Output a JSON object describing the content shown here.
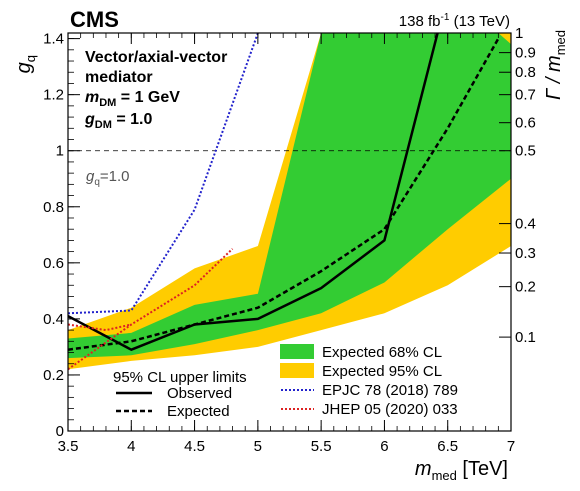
{
  "chart_data": {
    "type": "line",
    "experiment": "CMS",
    "lumi_label": "138 fb",
    "lumi_sup": "-1",
    "lumi_energy": " (13 TeV)",
    "model_lines": {
      "line1": "Vector/axial-vector",
      "line2": "mediator",
      "mdm_prefix": "m",
      "mdm_sub": "DM",
      "mdm_value": " = 1 GeV",
      "gdm_prefix": "g",
      "gdm_sub": "DM",
      "gdm_value": " = 1.0"
    },
    "xlabel": {
      "main": "m",
      "sub": "med",
      "unit": " [TeV]"
    },
    "ylabel": {
      "main": "g",
      "sub": "q"
    },
    "y2label": {
      "main": "Γ / m",
      "sub": "med"
    },
    "xlim": [
      3.5,
      7
    ],
    "ylim": [
      0,
      1.42
    ],
    "x_ticks": [
      "3.5",
      "4",
      "4.5",
      "5",
      "5.5",
      "6",
      "6.5",
      "7"
    ],
    "y_ticks": [
      "0",
      "0.2",
      "0.4",
      "0.6",
      "0.8",
      "1",
      "1.2",
      "1.4"
    ],
    "y2_ticks": [
      {
        "label": "0.1",
        "gq": 0.335
      },
      {
        "label": "0.2",
        "gq": 0.515
      },
      {
        "label": "0.3",
        "gq": 0.635
      },
      {
        "label": "0.4",
        "gq": 0.74
      },
      {
        "label": "0.5",
        "gq": 1.0
      },
      {
        "label": "0.6",
        "gq": 1.1
      },
      {
        "label": "0.7",
        "gq": 1.2
      },
      {
        "label": "0.8",
        "gq": 1.28
      },
      {
        "label": "0.9",
        "gq": 1.35
      },
      {
        "label": "1",
        "gq": 1.42
      }
    ],
    "reference_line": {
      "y": 1.0,
      "label_main": "g",
      "label_sub": "q",
      "label_value": "=1.0"
    },
    "colors": {
      "band68": "#33cc33",
      "band95": "#ffcc00",
      "epjc": "#2222cc",
      "jhep": "#dd2222"
    },
    "band95": {
      "upper": [
        [
          3.5,
          0.36
        ],
        [
          4,
          0.44
        ],
        [
          4.5,
          0.58
        ],
        [
          5,
          0.66
        ],
        [
          5.5,
          1.42
        ]
      ],
      "upper_top": [
        [
          5.5,
          1.42
        ],
        [
          7,
          1.42
        ]
      ],
      "lower": [
        [
          3.5,
          0.22
        ],
        [
          4,
          0.25
        ],
        [
          4.5,
          0.27
        ],
        [
          5,
          0.3
        ],
        [
          5.5,
          0.36
        ],
        [
          6,
          0.42
        ],
        [
          6.5,
          0.52
        ],
        [
          7,
          0.66
        ]
      ],
      "right": [
        [
          7,
          0.66
        ],
        [
          7,
          1.42
        ]
      ]
    },
    "band68": {
      "upper": [
        [
          3.5,
          0.33
        ],
        [
          4,
          0.35
        ],
        [
          4.5,
          0.45
        ],
        [
          5,
          0.49
        ],
        [
          5.5,
          1.42
        ]
      ],
      "upper_top": [
        [
          5.5,
          1.42
        ],
        [
          6.9,
          1.42
        ],
        [
          7,
          1.38
        ],
        [
          7,
          0.9
        ]
      ],
      "lower": [
        [
          3.5,
          0.26
        ],
        [
          4,
          0.27
        ],
        [
          4.5,
          0.31
        ],
        [
          5,
          0.36
        ],
        [
          5.5,
          0.42
        ],
        [
          6,
          0.53
        ],
        [
          6.5,
          0.72
        ],
        [
          7,
          0.9
        ]
      ]
    },
    "series": [
      {
        "name": "Observed",
        "style": "solid",
        "x": [
          3.5,
          4.0,
          4.5,
          5.0,
          5.5,
          6.0,
          6.42
        ],
        "y": [
          0.41,
          0.29,
          0.38,
          0.4,
          0.51,
          0.68,
          1.42
        ]
      },
      {
        "name": "Expected",
        "style": "dashed",
        "x": [
          3.5,
          4.0,
          4.5,
          5.0,
          5.5,
          6.0,
          6.5,
          6.9
        ],
        "y": [
          0.29,
          0.32,
          0.38,
          0.44,
          0.57,
          0.72,
          1.08,
          1.4
        ]
      },
      {
        "name": "EPJC 78 (2018) 789",
        "style": "blue-dotted",
        "x": [
          3.5,
          4.0,
          4.5,
          5.0
        ],
        "y": [
          0.42,
          0.43,
          0.79,
          1.42
        ]
      },
      {
        "name": "JHEP 05 (2020) 033",
        "style": "red-dotted",
        "x": [
          3.5,
          4.0,
          4.5,
          4.8
        ],
        "y": [
          0.22,
          0.38,
          0.52,
          0.65
        ]
      },
      {
        "name": "",
        "style": "red-dotted",
        "x": [
          3.5,
          3.8,
          4.0
        ],
        "y": [
          0.38,
          0.36,
          0.38
        ]
      }
    ],
    "legend": {
      "header": "95% CL upper limits",
      "observed": "Observed",
      "expected": "Expected",
      "band68": "Expected 68% CL",
      "band95": "Expected 95% CL",
      "epjc": "EPJC 78 (2018) 789",
      "jhep": "JHEP 05 (2020) 033"
    }
  }
}
